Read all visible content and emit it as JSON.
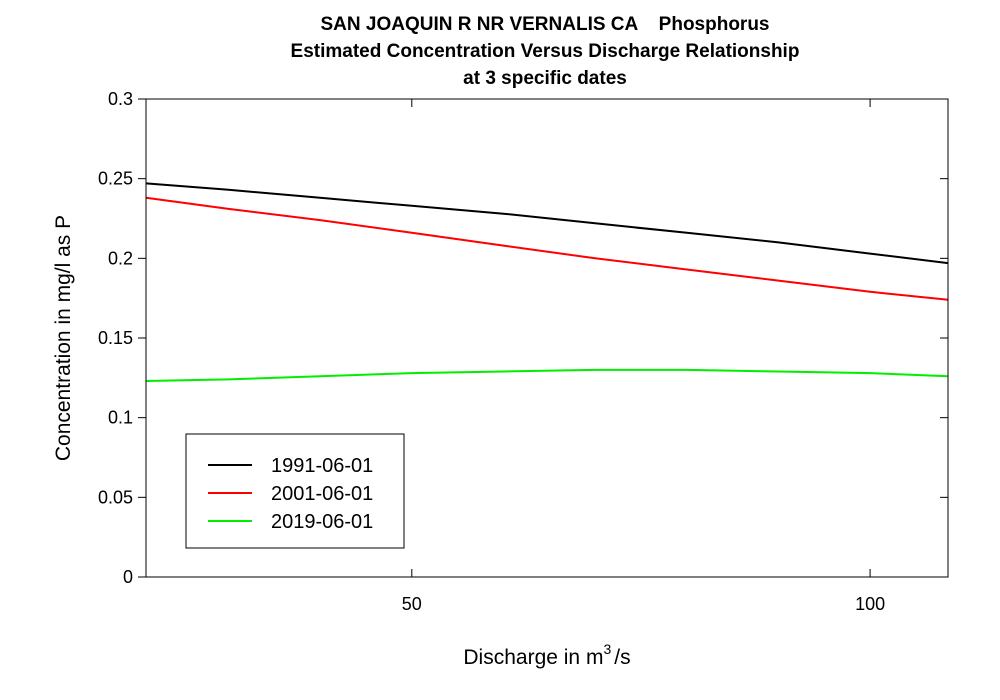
{
  "chart_data": {
    "type": "line",
    "title_lines": [
      "SAN JOAQUIN R NR VERNALIS CA    Phosphorus",
      "Estimated Concentration Versus Discharge Relationship",
      "at 3 specific dates"
    ],
    "xlabel": "Discharge in m",
    "xlabel_superscript": "3",
    "xlabel_suffix": "/s",
    "ylabel": "Concentration in mg/l as P",
    "xlim": [
      21.0,
      108.5
    ],
    "ylim": [
      0,
      0.3
    ],
    "x_ticks": [
      50,
      100
    ],
    "y_ticks": [
      0,
      0.05,
      0.1,
      0.15,
      0.2,
      0.25,
      0.3
    ],
    "grid": false,
    "legend_position": "bottom-left",
    "x": [
      21,
      30,
      40,
      50,
      60,
      70,
      80,
      90,
      100,
      108.5
    ],
    "series": [
      {
        "name": "1991-06-01",
        "color": "#000000",
        "values": [
          0.247,
          0.243,
          0.238,
          0.233,
          0.228,
          0.222,
          0.216,
          0.21,
          0.203,
          0.197
        ]
      },
      {
        "name": "2001-06-01",
        "color": "#ff0000",
        "values": [
          0.238,
          0.231,
          0.224,
          0.216,
          0.208,
          0.2,
          0.193,
          0.186,
          0.179,
          0.174
        ]
      },
      {
        "name": "2019-06-01",
        "color": "#00ee00",
        "values": [
          0.123,
          0.124,
          0.126,
          0.128,
          0.129,
          0.13,
          0.13,
          0.129,
          0.128,
          0.126
        ]
      }
    ]
  }
}
